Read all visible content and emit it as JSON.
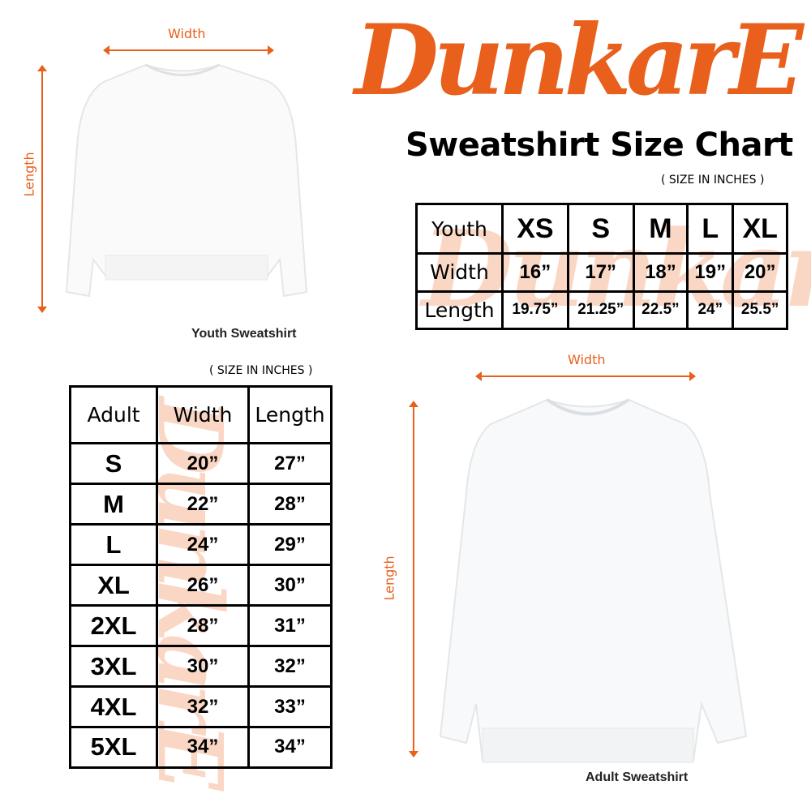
{
  "brand": {
    "logo_text": "DunkarE",
    "color": "#e8601c"
  },
  "title": "Sweatshirt Size Chart",
  "unit_note": "( SIZE IN INCHES )",
  "youth": {
    "caption": "Youth Sweatshirt",
    "width_label": "Width",
    "length_label": "Length",
    "header": [
      "Youth",
      "XS",
      "S",
      "M",
      "L",
      "XL"
    ],
    "rows": [
      [
        "Width",
        "16”",
        "17”",
        "18”",
        "19”",
        "20”"
      ],
      [
        "Length",
        "19.75”",
        "21.25”",
        "22.5”",
        "24”",
        "25.5”"
      ]
    ]
  },
  "adult": {
    "caption": "Adult Sweatshirt",
    "width_label": "Width",
    "length_label": "Length",
    "header": [
      "Adult",
      "Width",
      "Length"
    ],
    "rows": [
      [
        "S",
        "20”",
        "27”"
      ],
      [
        "M",
        "22”",
        "28”"
      ],
      [
        "L",
        "24”",
        "29”"
      ],
      [
        "XL",
        "26”",
        "30”"
      ],
      [
        "2XL",
        "28”",
        "31”"
      ],
      [
        "3XL",
        "30”",
        "32”"
      ],
      [
        "4XL",
        "32”",
        "33”"
      ],
      [
        "5XL",
        "34”",
        "34”"
      ]
    ]
  }
}
